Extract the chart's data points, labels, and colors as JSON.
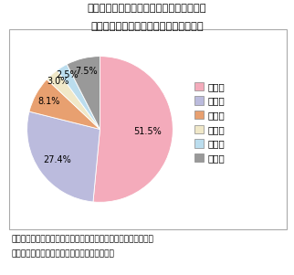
{
  "title_line1": "図表３　タクシー会社における定年の年齢",
  "title_line2": "（定年があると回答したタクシー会社）",
  "labels": [
    "６５歳",
    "６０歳",
    "７０歳",
    "６２歳",
    "６３歳",
    "その他"
  ],
  "values": [
    51.5,
    27.4,
    8.1,
    3.0,
    2.5,
    7.5
  ],
  "colors": [
    "#F4ABBB",
    "#BBBBDD",
    "#E8A070",
    "#F0E8C8",
    "#BBDDEE",
    "#999999"
  ],
  "pct_labels": [
    "51.5%",
    "27.4%",
    "8.1%",
    "3.0%",
    "2.5%",
    "7.5%"
  ],
  "startangle": 90,
  "legend_labels": [
    "６５歳",
    "６０歳",
    "７０歳",
    "６２歳",
    "６３歳",
    "その他"
  ],
  "source_line1": "（資料）全国ハイヤー・タクシー連合会「ハイヤー・タクシー業",
  "source_line2": "高齢者の活躍に向けたガイドライン」より抜粤",
  "bg_color": "#ffffff"
}
